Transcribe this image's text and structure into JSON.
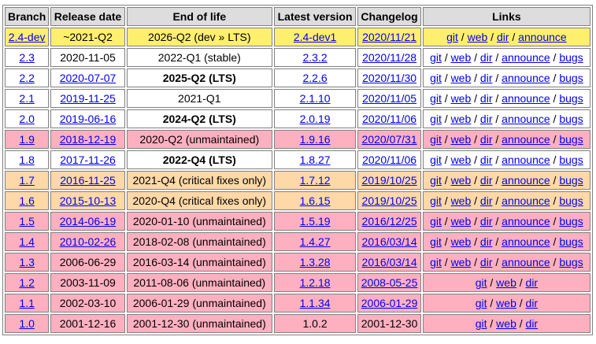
{
  "headers": [
    "Branch",
    "Release date",
    "End of life",
    "Latest version",
    "Changelog",
    "Links"
  ],
  "rows": [
    {
      "branch": "2.4-dev",
      "release": "~2021-Q2",
      "release_link": false,
      "eol": "2026-Q2 (dev » LTS)",
      "eol_bold": false,
      "latest": "2.4-dev1",
      "latest_link": true,
      "changelog": "2020/11/21",
      "changelog_link": true,
      "links": [
        "git",
        "web",
        "dir",
        "announce"
      ],
      "status": "dev"
    },
    {
      "branch": "2.3",
      "release": "2020-11-05",
      "release_link": false,
      "eol": "2022-Q1 (stable)",
      "eol_bold": false,
      "latest": "2.3.2",
      "latest_link": true,
      "changelog": "2020/11/28",
      "changelog_link": true,
      "links": [
        "git",
        "web",
        "dir",
        "announce",
        "bugs"
      ],
      "status": "active"
    },
    {
      "branch": "2.2",
      "release": "2020-07-07",
      "release_link": true,
      "eol": "2025-Q2 (LTS)",
      "eol_bold": true,
      "latest": "2.2.6",
      "latest_link": true,
      "changelog": "2020/11/30",
      "changelog_link": true,
      "links": [
        "git",
        "web",
        "dir",
        "announce",
        "bugs"
      ],
      "status": "active"
    },
    {
      "branch": "2.1",
      "release": "2019-11-25",
      "release_link": true,
      "eol": "2021-Q1",
      "eol_bold": false,
      "latest": "2.1.10",
      "latest_link": true,
      "changelog": "2020/11/05",
      "changelog_link": true,
      "links": [
        "git",
        "web",
        "dir",
        "announce",
        "bugs"
      ],
      "status": "active"
    },
    {
      "branch": "2.0",
      "release": "2019-06-16",
      "release_link": true,
      "eol": "2024-Q2 (LTS)",
      "eol_bold": true,
      "latest": "2.0.19",
      "latest_link": true,
      "changelog": "2020/11/06",
      "changelog_link": true,
      "links": [
        "git",
        "web",
        "dir",
        "announce",
        "bugs"
      ],
      "status": "active"
    },
    {
      "branch": "1.9",
      "release": "2018-12-19",
      "release_link": true,
      "eol": "2020-Q2 (unmaintained)",
      "eol_bold": false,
      "latest": "1.9.16",
      "latest_link": true,
      "changelog": "2020/07/31",
      "changelog_link": true,
      "links": [
        "git",
        "web",
        "dir",
        "announce",
        "bugs"
      ],
      "status": "unmaint"
    },
    {
      "branch": "1.8",
      "release": "2017-11-26",
      "release_link": true,
      "eol": "2022-Q4 (LTS)",
      "eol_bold": true,
      "latest": "1.8.27",
      "latest_link": true,
      "changelog": "2020/11/06",
      "changelog_link": true,
      "links": [
        "git",
        "web",
        "dir",
        "announce",
        "bugs"
      ],
      "status": "active"
    },
    {
      "branch": "1.7",
      "release": "2016-11-25",
      "release_link": true,
      "eol": "2021-Q4 (critical fixes only)",
      "eol_bold": false,
      "latest": "1.7.12",
      "latest_link": true,
      "changelog": "2019/10/25",
      "changelog_link": true,
      "links": [
        "git",
        "web",
        "dir",
        "announce",
        "bugs"
      ],
      "status": "critical"
    },
    {
      "branch": "1.6",
      "release": "2015-10-13",
      "release_link": true,
      "eol": "2020-Q4 (critical fixes only)",
      "eol_bold": false,
      "latest": "1.6.15",
      "latest_link": true,
      "changelog": "2019/10/25",
      "changelog_link": true,
      "links": [
        "git",
        "web",
        "dir",
        "announce",
        "bugs"
      ],
      "status": "critical"
    },
    {
      "branch": "1.5",
      "release": "2014-06-19",
      "release_link": true,
      "eol": "2020-01-10 (unmaintained)",
      "eol_bold": false,
      "latest": "1.5.19",
      "latest_link": true,
      "changelog": "2016/12/25",
      "changelog_link": true,
      "links": [
        "git",
        "web",
        "dir",
        "announce",
        "bugs"
      ],
      "status": "unmaint"
    },
    {
      "branch": "1.4",
      "release": "2010-02-26",
      "release_link": true,
      "eol": "2018-02-08 (unmaintained)",
      "eol_bold": false,
      "latest": "1.4.27",
      "latest_link": true,
      "changelog": "2016/03/14",
      "changelog_link": true,
      "links": [
        "git",
        "web",
        "dir",
        "announce",
        "bugs"
      ],
      "status": "unmaint"
    },
    {
      "branch": "1.3",
      "release": "2006-06-29",
      "release_link": false,
      "eol": "2016-03-14 (unmaintained)",
      "eol_bold": false,
      "latest": "1.3.28",
      "latest_link": true,
      "changelog": "2016/03/14",
      "changelog_link": true,
      "links": [
        "git",
        "web",
        "dir",
        "announce",
        "bugs"
      ],
      "status": "unmaint"
    },
    {
      "branch": "1.2",
      "release": "2003-11-09",
      "release_link": false,
      "eol": "2011-08-06 (unmaintained)",
      "eol_bold": false,
      "latest": "1.2.18",
      "latest_link": true,
      "changelog": "2008-05-25",
      "changelog_link": true,
      "links": [
        "git",
        "web",
        "dir"
      ],
      "status": "unmaint"
    },
    {
      "branch": "1.1",
      "release": "2002-03-10",
      "release_link": false,
      "eol": "2006-01-29 (unmaintained)",
      "eol_bold": false,
      "latest": "1.1.34",
      "latest_link": true,
      "changelog": "2006-01-29",
      "changelog_link": true,
      "links": [
        "git",
        "web",
        "dir"
      ],
      "status": "unmaint"
    },
    {
      "branch": "1.0",
      "release": "2001-12-16",
      "release_link": false,
      "eol": "2001-12-30 (unmaintained)",
      "eol_bold": false,
      "latest": "1.0.2",
      "latest_link": false,
      "changelog": "2001-12-30",
      "changelog_link": false,
      "links": [
        "git",
        "web",
        "dir"
      ],
      "status": "unmaint"
    }
  ]
}
